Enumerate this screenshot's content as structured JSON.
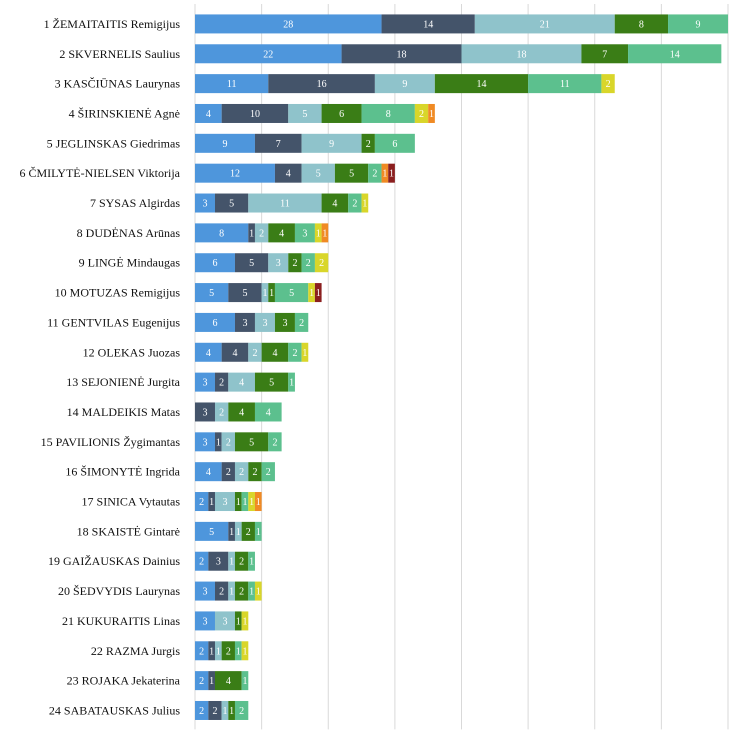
{
  "chart_data": {
    "type": "bar",
    "orientation": "horizontal",
    "stacked": true,
    "title": "",
    "xlabel": "",
    "ylabel": "",
    "xlim": [
      0,
      80
    ],
    "grid": true,
    "legend": "none",
    "categories": [
      "1 ŽEMAITAITIS Remigijus",
      "2 SKVERNELIS Saulius",
      "3 KASČIŪNAS Laurynas",
      "4 ŠIRINSKIENĖ Agnė",
      "5 JEGLINSKAS Giedrimas",
      "6 ČMILYTĖ-NIELSEN Viktorija",
      "7 SYSAS Algirdas",
      "8 DUDĖNAS Arūnas",
      "9 LINGĖ Mindaugas",
      "10 MOTUZAS Remigijus",
      "11 GENTVILAS Eugenijus",
      "12 OLEKAS Juozas",
      "13 SEJONIENĖ Jurgita",
      "14 MALDEIKIS Matas",
      "15 PAVILIONIS Žygimantas",
      "16 ŠIMONYTĖ Ingrida",
      "17 SINICA Vytautas",
      "18 SKAISTĖ Gintarė",
      "19 GAIŽAUSKAS Dainius",
      "20 ŠEDVYDIS Laurynas",
      "21 KUKURAITIS Linas",
      "22 RAZMA Jurgis",
      "23 ROJAKA Jekaterina",
      "24 SABATAUSKAS Julius"
    ],
    "series": [
      {
        "color": "#4e96dc",
        "values": [
          28,
          22,
          11,
          4,
          9,
          12,
          3,
          8,
          6,
          5,
          6,
          4,
          3,
          0,
          3,
          4,
          2,
          5,
          2,
          3,
          3,
          2,
          2,
          2
        ]
      },
      {
        "color": "#44546a",
        "values": [
          14,
          18,
          16,
          10,
          7,
          4,
          5,
          1,
          5,
          5,
          3,
          4,
          2,
          3,
          1,
          2,
          1,
          1,
          3,
          2,
          0,
          1,
          1,
          2
        ]
      },
      {
        "color": "#8fc3cb",
        "values": [
          21,
          18,
          9,
          5,
          9,
          5,
          11,
          2,
          3,
          1,
          3,
          2,
          4,
          2,
          2,
          2,
          3,
          1,
          1,
          1,
          3,
          1,
          0,
          1
        ]
      },
      {
        "color": "#3a7d16",
        "values": [
          8,
          7,
          14,
          6,
          2,
          5,
          4,
          4,
          2,
          1,
          3,
          4,
          5,
          4,
          5,
          2,
          1,
          2,
          2,
          2,
          1,
          2,
          4,
          1
        ]
      },
      {
        "color": "#5cc08e",
        "values": [
          9,
          14,
          11,
          8,
          6,
          2,
          2,
          3,
          2,
          5,
          2,
          2,
          1,
          4,
          2,
          2,
          1,
          1,
          1,
          1,
          0,
          1,
          1,
          2
        ]
      },
      {
        "color": "#d9d62a",
        "values": [
          0,
          0,
          2,
          2,
          0,
          0,
          1,
          1,
          2,
          1,
          0,
          1,
          0,
          0,
          0,
          0,
          1,
          0,
          0,
          1,
          1,
          1,
          0,
          0
        ]
      },
      {
        "color": "#f08a24",
        "values": [
          0,
          0,
          0,
          1,
          0,
          1,
          0,
          1,
          0,
          0,
          0,
          0,
          0,
          0,
          0,
          0,
          1,
          0,
          0,
          0,
          0,
          0,
          0,
          0
        ]
      },
      {
        "color": "#8b1f1f",
        "values": [
          0,
          0,
          0,
          0,
          0,
          1,
          0,
          0,
          0,
          1,
          0,
          0,
          0,
          0,
          0,
          0,
          0,
          0,
          0,
          0,
          0,
          0,
          0,
          0
        ]
      }
    ]
  }
}
